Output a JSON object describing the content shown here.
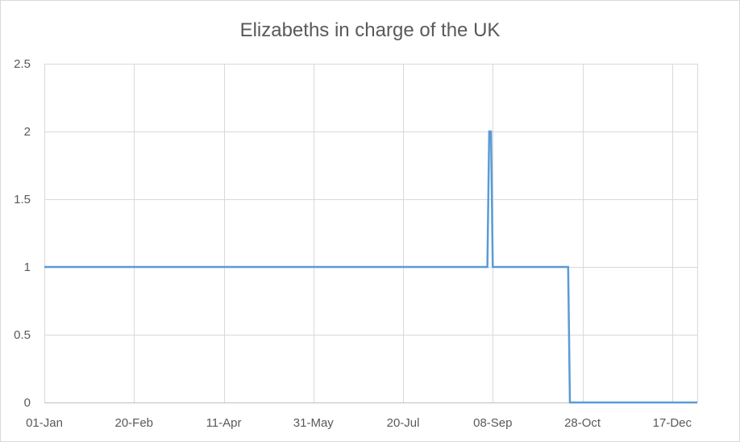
{
  "chart_data": {
    "type": "line",
    "title": "Elizabeths in charge of the UK",
    "xlabel": "",
    "ylabel": "",
    "x_range": [
      "2022-01-01",
      "2022-12-31"
    ],
    "x_tick_dates": [
      "2022-01-01",
      "2022-02-20",
      "2022-04-11",
      "2022-05-31",
      "2022-07-20",
      "2022-09-08",
      "2022-10-28",
      "2022-12-17"
    ],
    "x_ticks": [
      "01-Jan",
      "20-Feb",
      "11-Apr",
      "31-May",
      "20-Jul",
      "08-Sep",
      "28-Oct",
      "17-Dec"
    ],
    "ylim": [
      0,
      2.5
    ],
    "y_ticks": [
      "0",
      "0.5",
      "1",
      "1.5",
      "2",
      "2.5"
    ],
    "y_tick_values": [
      0,
      0.5,
      1,
      1.5,
      2,
      2.5
    ],
    "grid": true,
    "legend": "none",
    "series": [
      {
        "color": "#5b9bd5",
        "points": [
          {
            "x": "2022-01-01",
            "y": 1
          },
          {
            "x": "2022-09-05",
            "y": 1
          },
          {
            "x": "2022-09-06",
            "y": 2
          },
          {
            "x": "2022-09-07",
            "y": 2
          },
          {
            "x": "2022-09-08",
            "y": 1
          },
          {
            "x": "2022-10-20",
            "y": 1
          },
          {
            "x": "2022-10-21",
            "y": 0
          },
          {
            "x": "2022-12-31",
            "y": 0
          }
        ]
      }
    ]
  }
}
